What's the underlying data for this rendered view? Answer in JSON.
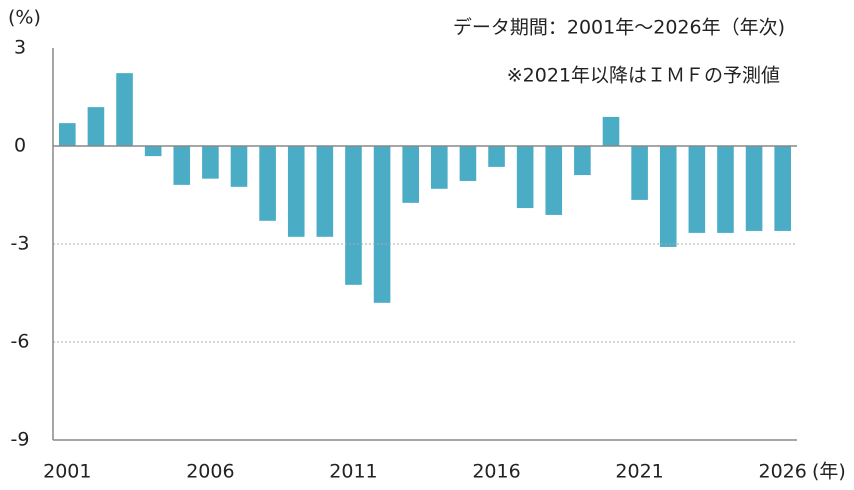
{
  "chart_data": {
    "type": "bar",
    "subtitle": "データ期間：2001年～2026年（年次)",
    "annotation": "※2021年以降はＩＭＦの予測値",
    "y_label": "(%)",
    "x_label": "(年)",
    "categories": [
      "2001",
      null,
      null,
      null,
      null,
      "2006",
      null,
      null,
      null,
      null,
      "2011",
      null,
      null,
      null,
      null,
      "2016",
      null,
      null,
      null,
      null,
      "2021",
      null,
      null,
      null,
      null,
      "2026"
    ],
    "values": [
      0.7,
      1.19,
      2.23,
      -0.31,
      -1.19,
      -1.0,
      -1.25,
      -2.29,
      -2.78,
      -2.78,
      -4.25,
      -4.8,
      -1.74,
      -1.31,
      -1.07,
      -0.64,
      -1.9,
      -2.11,
      -0.89,
      0.89,
      -1.65,
      -3.09,
      -2.66,
      -2.66,
      -2.6,
      -2.6
    ],
    "color": "#4bacc6",
    "ylim": [
      -9,
      3
    ],
    "yticks": [
      -9,
      -6,
      -3,
      0,
      3
    ],
    "grid": true
  }
}
